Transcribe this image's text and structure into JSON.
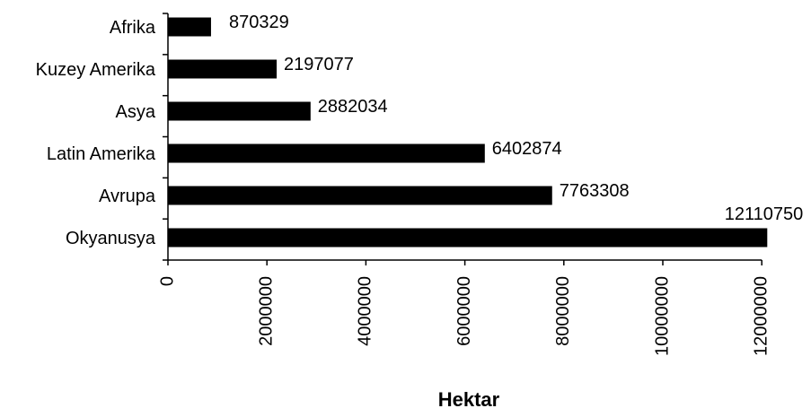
{
  "chart_data": {
    "type": "bar",
    "orientation": "horizontal",
    "categories": [
      "Afrika",
      "Kuzey Amerika",
      "Asya",
      "Latin Amerika",
      "Avrupa",
      "Okyanusya"
    ],
    "values": [
      870329,
      2197077,
      2882034,
      6402874,
      7763308,
      12110750
    ],
    "data_labels": [
      "870329",
      "2197077",
      "2882034",
      "6402874",
      "7763308",
      "12110750"
    ],
    "xlabel": "Hektar",
    "ylabel": "",
    "xlim": [
      0,
      12000000
    ],
    "x_ticks": [
      0,
      2000000,
      4000000,
      6000000,
      8000000,
      10000000,
      12000000
    ],
    "x_tick_labels": [
      "0",
      "2000000",
      "4000000",
      "6000000",
      "8000000",
      "10000000",
      "12000000"
    ],
    "bar_color": "#000000",
    "grid": false,
    "legend": "none"
  }
}
